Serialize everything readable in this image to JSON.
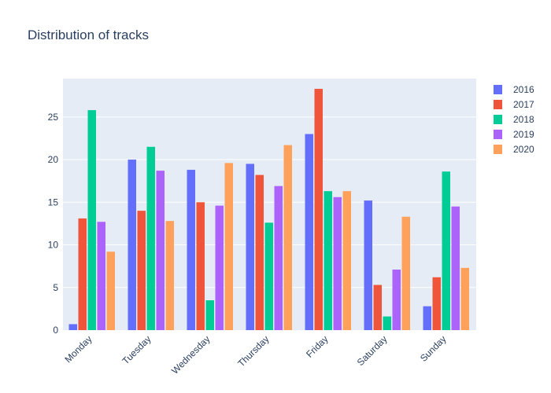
{
  "chart_data": {
    "type": "bar",
    "title": "Distribution of tracks",
    "xlabel": "",
    "ylabel": "",
    "categories": [
      "Monday",
      "Tuesday",
      "Wednesday",
      "Thursday",
      "Friday",
      "Saturday",
      "Sunday"
    ],
    "ylim": [
      0,
      29.5
    ],
    "yticks": [
      0,
      5,
      10,
      15,
      20,
      25
    ],
    "grid": true,
    "legend_position": "right",
    "series": [
      {
        "name": "2016",
        "color": "#636efa",
        "values": [
          0.7,
          20.0,
          18.8,
          19.5,
          23.0,
          15.2,
          2.8
        ]
      },
      {
        "name": "2017",
        "color": "#ef553b",
        "values": [
          13.1,
          14.0,
          15.0,
          18.2,
          28.3,
          5.3,
          6.2
        ]
      },
      {
        "name": "2018",
        "color": "#00cc96",
        "values": [
          25.8,
          21.5,
          3.5,
          12.6,
          16.3,
          1.6,
          18.6
        ]
      },
      {
        "name": "2019",
        "color": "#ab63fa",
        "values": [
          12.7,
          18.7,
          14.6,
          16.9,
          15.6,
          7.1,
          14.5
        ]
      },
      {
        "name": "2020",
        "color": "#ffa15a",
        "values": [
          9.2,
          12.8,
          19.6,
          21.7,
          16.3,
          13.3,
          7.3
        ]
      }
    ]
  }
}
